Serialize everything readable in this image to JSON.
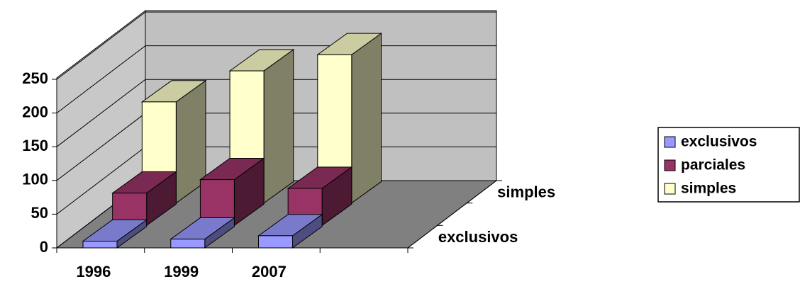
{
  "chart_data": {
    "type": "bar3d",
    "categories": [
      "1996",
      "1999",
      "2007",
      null
    ],
    "series": [
      {
        "name": "exclusivos",
        "color": "#9999ff",
        "values": [
          10,
          13,
          18,
          null
        ]
      },
      {
        "name": "parciales",
        "color": "#993366",
        "values": [
          48,
          68,
          55,
          null
        ]
      },
      {
        "name": "simples",
        "color": "#ffffcc",
        "values": [
          150,
          196,
          220,
          null
        ]
      }
    ],
    "ylim": [
      0,
      250
    ],
    "yticks": [
      0,
      50,
      100,
      150,
      200,
      250
    ],
    "grid": true,
    "legend": "right"
  }
}
